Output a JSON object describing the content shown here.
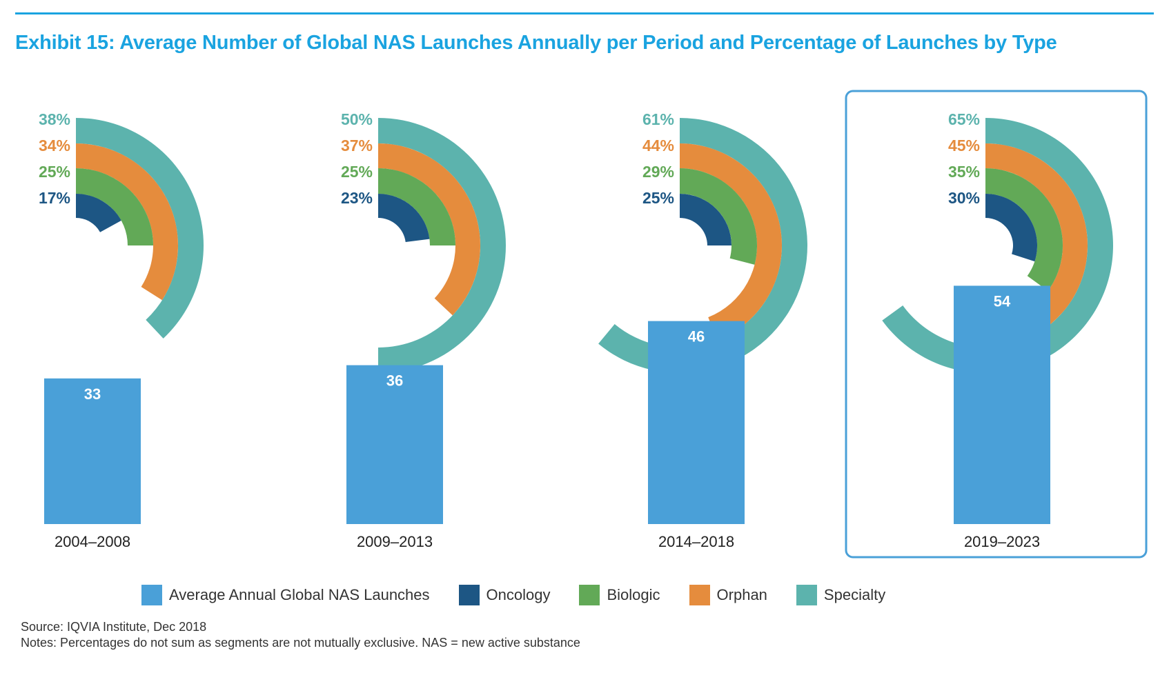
{
  "title": "Exhibit 15: Average Number of Global NAS Launches Annually per Period and Percentage of Launches by Type",
  "colors": {
    "accent": "#1aa3e0",
    "bar": "#4aa0d8",
    "oncology": "#1d5684",
    "biologic": "#62a957",
    "orphan": "#e58c3d",
    "specialty": "#5cb3ad",
    "highlight_border": "#4aa0d8"
  },
  "chart_data": {
    "type": "bar",
    "categories": [
      "2004–2008",
      "2009–2013",
      "2014–2018",
      "2019–2023"
    ],
    "values": [
      33,
      36,
      46,
      54
    ],
    "highlighted_category": "2019–2023",
    "radial_series": [
      {
        "name": "Specialty",
        "values": [
          38,
          50,
          61,
          65
        ]
      },
      {
        "name": "Orphan",
        "values": [
          34,
          37,
          44,
          45
        ]
      },
      {
        "name": "Biologic",
        "values": [
          25,
          25,
          29,
          35
        ]
      },
      {
        "name": "Oncology",
        "values": [
          17,
          23,
          25,
          30
        ]
      }
    ],
    "unit": "%"
  },
  "legend": [
    {
      "label": "Average Annual Global NAS Launches",
      "color": "#4aa0d8"
    },
    {
      "label": "Oncology",
      "color": "#1d5684"
    },
    {
      "label": "Biologic",
      "color": "#62a957"
    },
    {
      "label": "Orphan",
      "color": "#e58c3d"
    },
    {
      "label": "Specialty",
      "color": "#5cb3ad"
    }
  ],
  "source": "Source: IQVIA Institute, Dec 2018",
  "notes": "Notes: Percentages do not sum as segments are not mutually exclusive. NAS = new active substance"
}
